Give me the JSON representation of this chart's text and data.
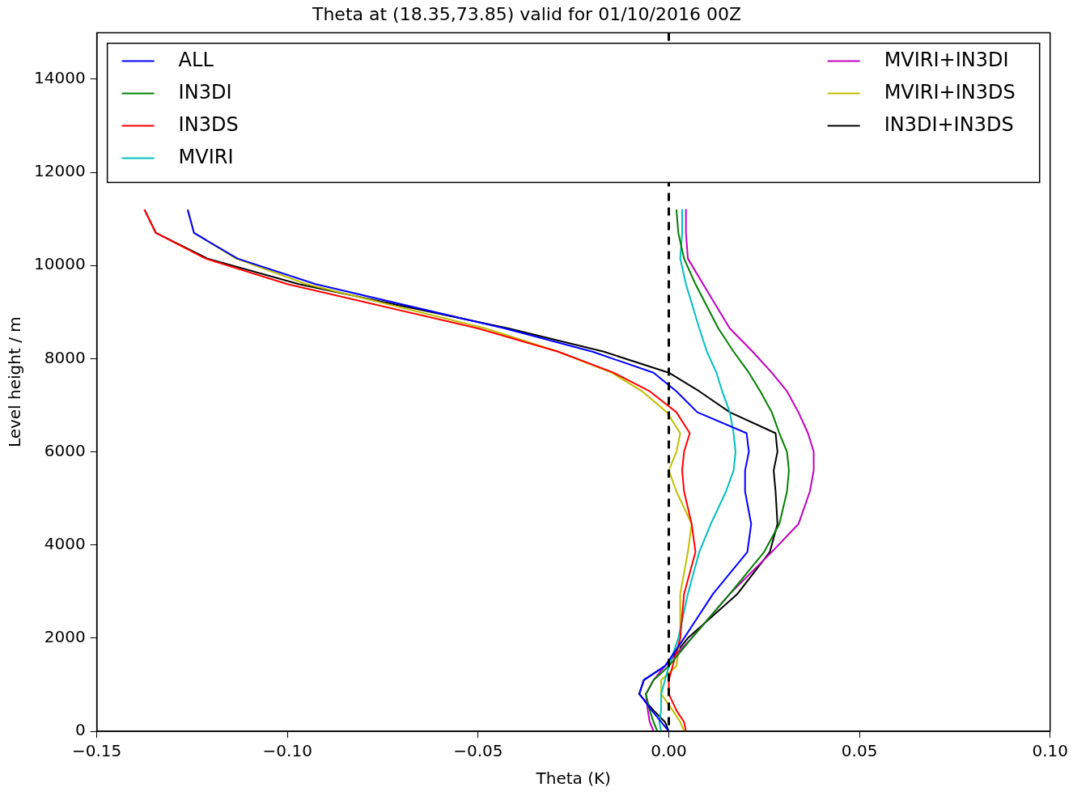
{
  "chart_data": {
    "type": "line",
    "title": "Theta at (18.35,73.85) valid for 01/10/2016 00Z",
    "xlabel": "Theta (K)",
    "ylabel": "Level height / m",
    "xlim": [
      -0.15,
      0.1
    ],
    "xticks": [
      {
        "value": -0.15,
        "label": "−0.15"
      },
      {
        "value": -0.1,
        "label": "−0.10"
      },
      {
        "value": -0.05,
        "label": "−0.05"
      },
      {
        "value": 0,
        "label": "0.00"
      },
      {
        "value": 0.05,
        "label": "0.05"
      },
      {
        "value": 0.1,
        "label": "0.10"
      }
    ],
    "ylim": [
      0,
      15000
    ],
    "yticks": [
      0,
      2000,
      4000,
      6000,
      8000,
      10000,
      12000,
      14000
    ],
    "grid": false,
    "legend": "top",
    "marker": "none",
    "line_style": "solid",
    "ref_lines": [
      {
        "axis": "x",
        "value": 0,
        "label": null,
        "color": "#000000",
        "line_style": "dashed"
      }
    ],
    "series": [
      {
        "name": "ALL",
        "color": "#0000ff",
        "x": [
          -0.1262,
          -0.1245,
          -0.1131,
          -0.0926,
          -0.043,
          -0.02,
          -0.004,
          0.002,
          0.0075,
          0.0204,
          0.021,
          0.02,
          0.02,
          0.0216,
          0.0206,
          0.0116,
          0.004,
          -0.001,
          -0.0066,
          -0.0077,
          -0.0045,
          -0.002,
          0
        ],
        "values": [
          11200,
          10700,
          10150,
          9600,
          8650,
          8150,
          7700,
          7300,
          6850,
          6400,
          6000,
          5600,
          5150,
          4450,
          3850,
          2950,
          2000,
          1400,
          1100,
          800,
          450,
          200,
          0
        ]
      },
      {
        "name": "IN3DI",
        "color": "#008000",
        "x": [
          0.002,
          0.0025,
          0.004,
          0.007,
          0.013,
          0.017,
          0.021,
          0.024,
          0.027,
          0.029,
          0.031,
          0.0315,
          0.031,
          0.029,
          0.025,
          0.016,
          0.006,
          0,
          -0.004,
          -0.006,
          -0.005,
          -0.004,
          -0.003
        ],
        "values": [
          11200,
          10700,
          10150,
          9600,
          8650,
          8150,
          7700,
          7300,
          6850,
          6400,
          6000,
          5600,
          5150,
          4450,
          3850,
          2950,
          2000,
          1400,
          1100,
          800,
          450,
          200,
          0
        ]
      },
      {
        "name": "IN3DS",
        "color": "#ff0000",
        "x": [
          -0.1375,
          -0.1345,
          -0.1215,
          -0.1,
          -0.05,
          -0.029,
          -0.0145,
          -0.005,
          0.002,
          0.0055,
          0.004,
          0.0035,
          0.004,
          0.006,
          0.007,
          0.004,
          0.003,
          0.001,
          0,
          0,
          0.002,
          0.004,
          0.0045
        ],
        "values": [
          11200,
          10700,
          10150,
          9600,
          8650,
          8150,
          7700,
          7300,
          6850,
          6400,
          6000,
          5600,
          5150,
          4450,
          3850,
          2950,
          2000,
          1400,
          1100,
          800,
          450,
          200,
          0
        ]
      },
      {
        "name": "MVIRI",
        "color": "#00bfbf",
        "x": [
          0.0035,
          0.0035,
          0.003,
          0.0045,
          0.008,
          0.01,
          0.0125,
          0.014,
          0.016,
          0.017,
          0.0175,
          0.017,
          0.015,
          0.011,
          0.008,
          0.005,
          0.0025,
          0,
          -0.001,
          -0.002,
          -0.002,
          -0.0025,
          -0.002
        ],
        "values": [
          11200,
          10700,
          10150,
          9600,
          8650,
          8150,
          7700,
          7300,
          6850,
          6400,
          6000,
          5600,
          5150,
          4450,
          3850,
          2950,
          2000,
          1400,
          1100,
          800,
          450,
          200,
          0
        ]
      },
      {
        "name": "MVIRI+IN3DI",
        "color": "#bf00bf",
        "x": [
          0.0045,
          0.0045,
          0.005,
          0.009,
          0.016,
          0.022,
          0.027,
          0.031,
          0.034,
          0.0365,
          0.038,
          0.038,
          0.037,
          0.034,
          0.027,
          0.016,
          0.006,
          -0.001,
          -0.004,
          -0.006,
          -0.0055,
          -0.005,
          -0.004
        ],
        "values": [
          11200,
          10700,
          10150,
          9600,
          8650,
          8150,
          7700,
          7300,
          6850,
          6400,
          6000,
          5600,
          5150,
          4450,
          3850,
          2950,
          2000,
          1400,
          1100,
          800,
          450,
          200,
          0
        ]
      },
      {
        "name": "MVIRI+IN3DS",
        "color": "#bfbf00",
        "x": [
          -0.126,
          -0.1245,
          -0.1135,
          -0.095,
          -0.048,
          -0.029,
          -0.015,
          -0.007,
          -0.0005,
          0.003,
          0.002,
          0,
          0.002,
          0.006,
          0.005,
          0.003,
          0.003,
          0.002,
          -0.002,
          -0.002,
          0.001,
          0.003,
          0.004
        ],
        "values": [
          11200,
          10700,
          10150,
          9600,
          8650,
          8150,
          7700,
          7300,
          6850,
          6400,
          6000,
          5600,
          5150,
          4450,
          3850,
          2950,
          2000,
          1400,
          1100,
          800,
          450,
          200,
          0
        ]
      },
      {
        "name": "IN3DI+IN3DS",
        "color": "#000000",
        "x": [
          -0.1375,
          -0.1345,
          -0.121,
          -0.097,
          -0.042,
          -0.017,
          0,
          0.008,
          0.016,
          0.028,
          0.0285,
          0.0275,
          0.028,
          0.0285,
          0.0265,
          0.018,
          0.005,
          -0.001,
          -0.0065,
          -0.0078,
          -0.004,
          -0.001,
          0,
          0.1
        ],
        "values": [
          11200,
          10700,
          10150,
          9600,
          8650,
          8150,
          7700,
          7300,
          6850,
          6400,
          6000,
          5600,
          5150,
          4450,
          3850,
          2950,
          2000,
          1400,
          1100,
          800,
          450,
          200,
          0,
          0
        ]
      }
    ]
  }
}
